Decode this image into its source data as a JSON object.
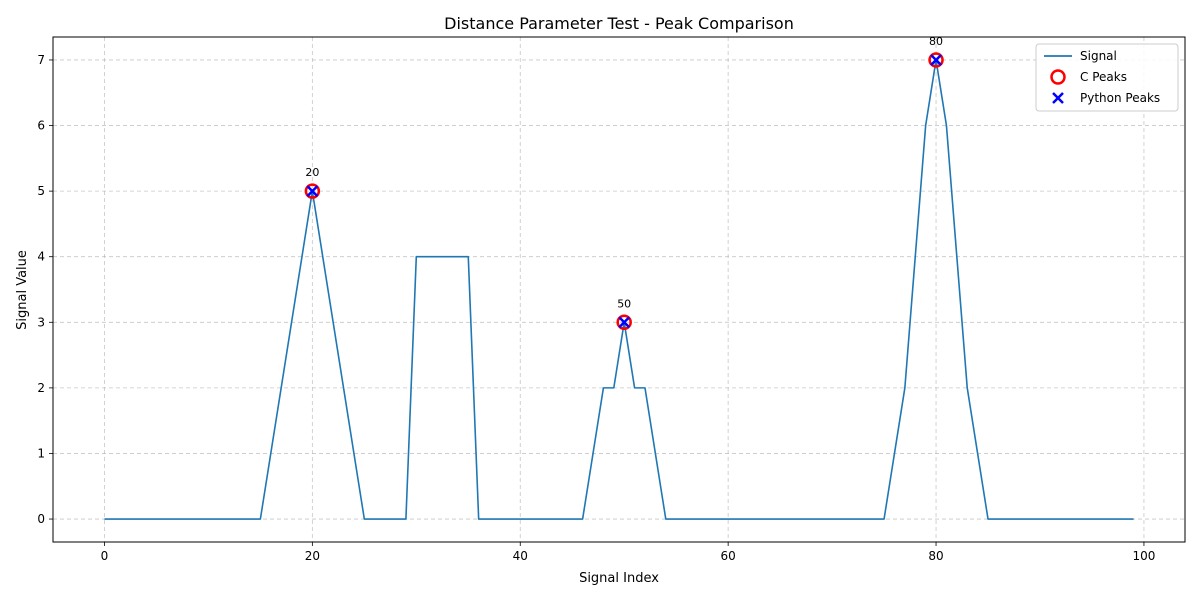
{
  "chart_data": {
    "type": "line",
    "title": "Distance Parameter Test - Peak Comparison",
    "xlabel": "Signal Index",
    "ylabel": "Signal Value",
    "xlim": [
      -4.95,
      103.95
    ],
    "ylim": [
      -0.35,
      7.35
    ],
    "xticks": [
      0,
      20,
      40,
      60,
      80,
      100
    ],
    "yticks": [
      0,
      1,
      2,
      3,
      4,
      5,
      6,
      7
    ],
    "grid": true,
    "legend_position": "top-right",
    "series": [
      {
        "name": "Signal",
        "color": "#1f77b4",
        "x": [
          0,
          15,
          16,
          17,
          18,
          19,
          20,
          21,
          22,
          23,
          24,
          25,
          29,
          30,
          35,
          36,
          46,
          47,
          48,
          49,
          50,
          51,
          52,
          53,
          54,
          75,
          76,
          77,
          78,
          79,
          80,
          81,
          82,
          83,
          84,
          85,
          99
        ],
        "y": [
          0,
          0,
          1,
          2,
          3,
          4,
          5,
          4,
          3,
          2,
          1,
          0,
          0,
          4,
          4,
          0,
          0,
          1,
          2,
          2,
          3,
          2,
          2,
          1,
          0,
          0,
          1,
          2,
          4,
          6,
          7,
          6,
          4,
          2,
          1,
          0,
          0
        ]
      },
      {
        "name": "C Peaks",
        "color": "#ff0000",
        "marker": "circle",
        "x": [
          20,
          50,
          80
        ],
        "y": [
          5,
          3,
          7
        ]
      },
      {
        "name": "Python Peaks",
        "color": "#0000ff",
        "marker": "x",
        "x": [
          20,
          50,
          80
        ],
        "y": [
          5,
          3,
          7
        ]
      }
    ],
    "annotations": [
      {
        "text": "20",
        "x": 20,
        "y": 5
      },
      {
        "text": "50",
        "x": 50,
        "y": 3
      },
      {
        "text": "80",
        "x": 80,
        "y": 7
      }
    ]
  }
}
